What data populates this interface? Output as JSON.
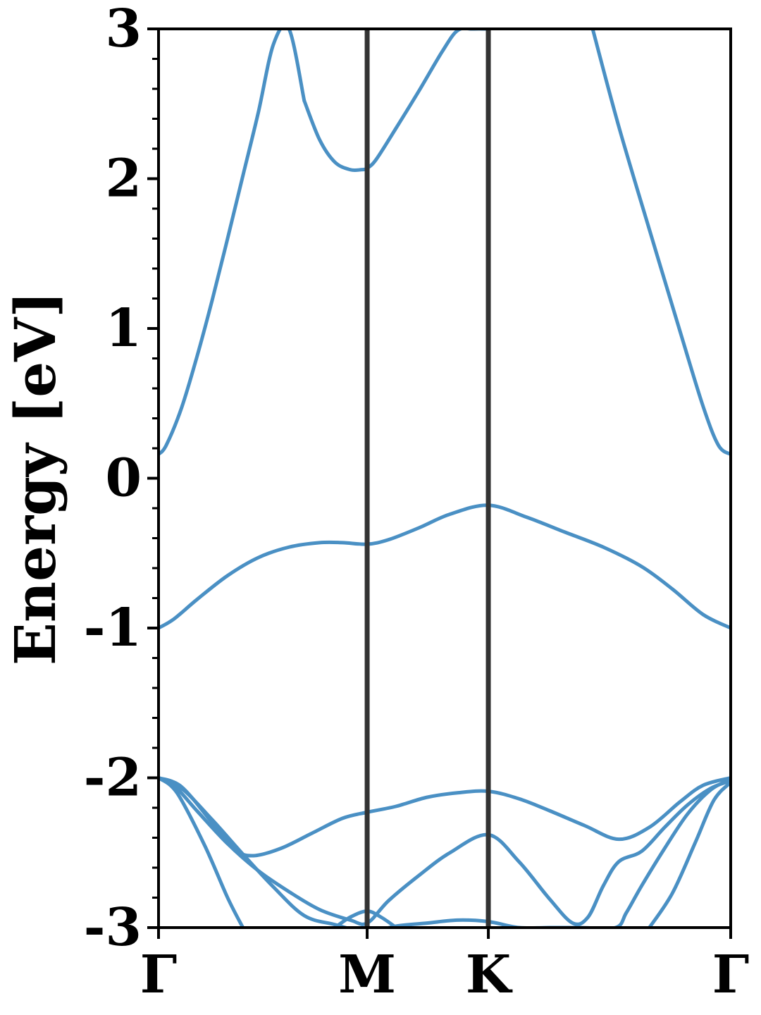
{
  "chart_data": {
    "type": "line",
    "title": "",
    "xlabel": "",
    "ylabel": "Energy [eV]",
    "ylim": [
      -3,
      3
    ],
    "xlim": [
      0,
      3.73
    ],
    "yticks": [
      -3,
      -2,
      -1,
      0,
      1,
      2,
      3
    ],
    "ytick_labels": [
      "-3",
      "-2",
      "-1",
      "0",
      "1",
      "2",
      "3"
    ],
    "yminor_step": 0.2,
    "xticks": [
      0,
      1.36,
      2.15,
      3.73
    ],
    "xtick_labels": [
      "Γ",
      "M",
      "K",
      "Γ"
    ],
    "high_symmetry_lines": [
      1.36,
      2.15
    ],
    "grid": false,
    "legend": "none",
    "colors": {
      "band": "#4a90c4",
      "symmetry_line": "#333333",
      "axis": "#000000"
    },
    "series": [
      {
        "x": [
          0,
          0.05,
          0.15,
          0.25,
          0.35,
          0.45,
          0.55,
          0.65,
          0.75,
          0.85,
          0.95
        ],
        "y": [
          0.16,
          0.22,
          0.47,
          0.81,
          1.19,
          1.6,
          2.02,
          2.44,
          2.9,
          3.0,
          2.52
        ]
      },
      {
        "x": [
          0.95,
          1.05,
          1.15,
          1.25,
          1.32,
          1.36,
          1.42,
          1.55,
          1.7,
          1.85,
          1.95,
          2.05,
          2.15
        ],
        "y": [
          2.52,
          2.26,
          2.11,
          2.06,
          2.06,
          2.07,
          2.13,
          2.34,
          2.59,
          2.85,
          2.99,
          3.0,
          3.0
        ]
      },
      {
        "x": [
          2.83,
          3.0,
          3.2,
          3.4,
          3.55,
          3.65,
          3.73
        ],
        "y": [
          3.0,
          2.35,
          1.66,
          0.98,
          0.48,
          0.22,
          0.16
        ]
      },
      {
        "x": [
          0,
          0.1,
          0.25,
          0.45,
          0.65,
          0.85,
          1.05,
          1.2,
          1.36,
          1.5,
          1.7,
          1.9,
          2.15,
          2.4,
          2.65,
          2.9,
          3.15,
          3.35,
          3.55,
          3.73
        ],
        "y": [
          -1.0,
          -0.94,
          -0.81,
          -0.65,
          -0.53,
          -0.46,
          -0.43,
          -0.43,
          -0.44,
          -0.41,
          -0.33,
          -0.24,
          -0.18,
          -0.26,
          -0.36,
          -0.46,
          -0.59,
          -0.74,
          -0.91,
          -1.0
        ]
      },
      {
        "x": [
          0,
          0.15,
          0.35,
          0.55,
          0.75,
          0.95,
          1.15,
          1.36,
          1.55,
          1.75,
          1.95,
          2.15,
          2.35,
          2.55,
          2.75,
          2.98,
          3.05,
          3.15,
          3.3,
          3.45,
          3.6,
          3.73
        ],
        "y": [
          -2.0,
          -2.07,
          -2.28,
          -2.51,
          -2.73,
          -2.92,
          -2.98,
          -3.03,
          -2.99,
          -2.97,
          -2.95,
          -2.96,
          -3.0,
          -3.0,
          -3.0,
          -3.0,
          -2.9,
          -2.72,
          -2.47,
          -2.24,
          -2.08,
          -2.01
        ]
      },
      {
        "x": [
          0,
          0.15,
          0.35,
          0.5,
          0.62,
          0.8,
          1.0,
          1.2,
          1.36,
          1.55,
          1.75,
          1.95,
          2.15,
          2.35,
          2.55,
          2.78,
          3.0,
          3.2,
          3.4,
          3.55,
          3.73
        ],
        "y": [
          -2.0,
          -2.06,
          -2.3,
          -2.48,
          -2.52,
          -2.47,
          -2.37,
          -2.27,
          -2.23,
          -2.19,
          -2.13,
          -2.1,
          -2.09,
          -2.14,
          -2.22,
          -2.32,
          -2.41,
          -2.33,
          -2.16,
          -2.05,
          -2.0
        ]
      },
      {
        "x": [
          0,
          0.1,
          0.25,
          0.45,
          0.65,
          0.85,
          1.05,
          1.25,
          1.36,
          1.5,
          1.7,
          1.9,
          2.15,
          2.35,
          2.55,
          2.7,
          2.8,
          2.9,
          3.0,
          3.15,
          3.3,
          3.45,
          3.6,
          3.73
        ],
        "y": [
          -2.0,
          -2.05,
          -2.22,
          -2.44,
          -2.62,
          -2.76,
          -2.88,
          -2.95,
          -2.97,
          -2.82,
          -2.65,
          -2.5,
          -2.38,
          -2.56,
          -2.81,
          -2.97,
          -2.93,
          -2.72,
          -2.56,
          -2.49,
          -2.33,
          -2.18,
          -2.07,
          -2.02
        ]
      },
      {
        "x": [
          0,
          0.12,
          0.3,
          0.45,
          0.55
        ],
        "y": [
          -2.0,
          -2.1,
          -2.45,
          -2.8,
          -3.0
        ]
      },
      {
        "x": [
          3.2,
          3.35,
          3.5,
          3.62,
          3.73
        ],
        "y": [
          -3.0,
          -2.77,
          -2.43,
          -2.15,
          -2.03
        ]
      },
      {
        "x": [
          1.15,
          1.25,
          1.36,
          1.45,
          1.55
        ],
        "y": [
          -3.0,
          -2.93,
          -2.89,
          -2.93,
          -3.0
        ]
      }
    ]
  }
}
